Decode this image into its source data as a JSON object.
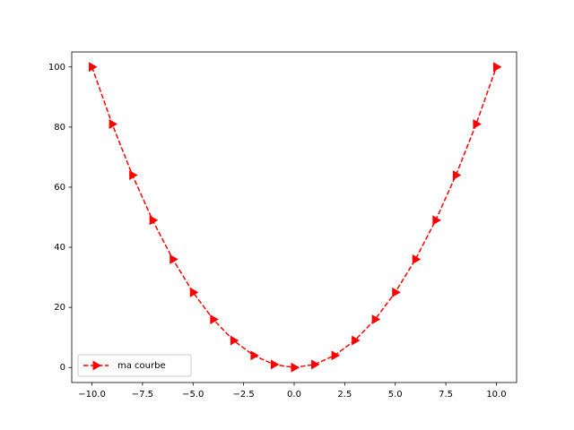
{
  "chart_data": {
    "type": "line",
    "x": [
      -10,
      -9,
      -8,
      -7,
      -6,
      -5,
      -4,
      -3,
      -2,
      -1,
      0,
      1,
      2,
      3,
      4,
      5,
      6,
      7,
      8,
      9,
      10
    ],
    "series": [
      {
        "name": "ma courbe",
        "color": "#ff0000",
        "linestyle": "dashed",
        "marker": "triangle-right",
        "values": [
          100,
          81,
          64,
          49,
          36,
          25,
          16,
          9,
          4,
          1,
          0,
          1,
          4,
          9,
          16,
          25,
          36,
          49,
          64,
          81,
          100
        ]
      }
    ],
    "xlim": [
      -11,
      11
    ],
    "ylim": [
      -5,
      105
    ],
    "xticks": [
      {
        "value": -10,
        "label": "−10.0"
      },
      {
        "value": -7.5,
        "label": "−7.5"
      },
      {
        "value": -5,
        "label": "−5.0"
      },
      {
        "value": -2.5,
        "label": "−2.5"
      },
      {
        "value": 0,
        "label": "0.0"
      },
      2.5,
      {
        "value": 5,
        "label": "5.0"
      },
      7.5,
      {
        "value": 10,
        "label": "10.0"
      }
    ],
    "yticks": [
      0,
      20,
      40,
      60,
      80,
      100
    ],
    "legend": "lower left",
    "grid": false
  }
}
